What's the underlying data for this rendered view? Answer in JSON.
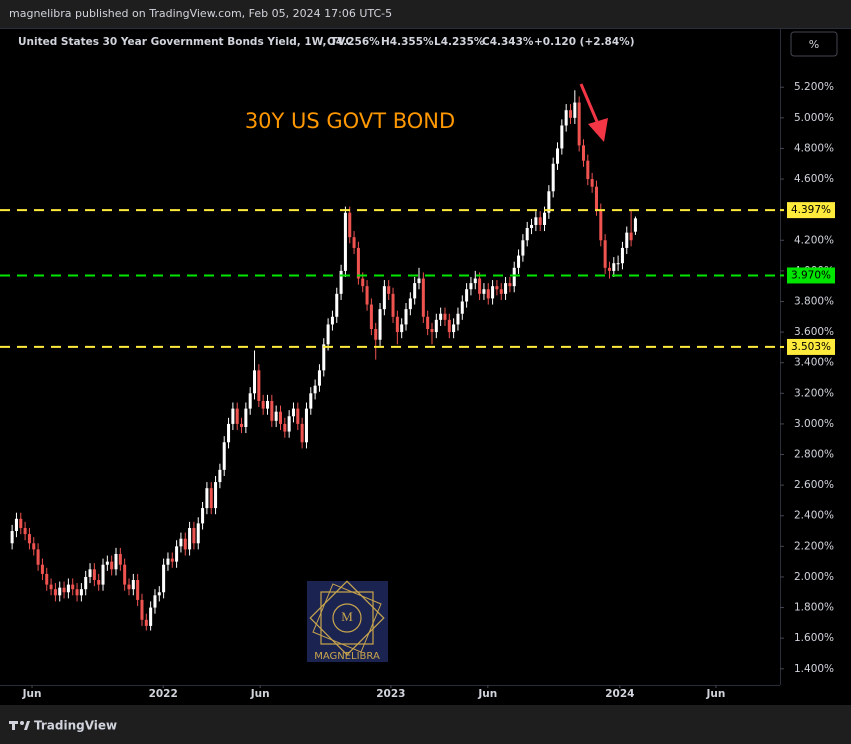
{
  "header": "magnelibra published on TradingView.com, Feb 05, 2024 17:06 UTC-5",
  "footer": "TradingView",
  "scale_button": "%",
  "watermark": "MAGNELIBRA",
  "chart_data": {
    "type": "candlestick",
    "legend": {
      "symbol": "United States 30 Year Government Bonds Yield, 1W, TVC",
      "open": "O4.256%",
      "high": "H4.355%",
      "low": "L4.235%",
      "close": "C4.343%",
      "change": "+0.120 (+2.84%)"
    },
    "annotation": "30Y US GOVT BOND",
    "up_color": "#ffffff",
    "down_color": "#ef5350",
    "open": [
      2.22,
      2.3,
      2.38,
      2.32,
      2.28,
      2.22,
      2.18,
      2.08,
      2.02,
      1.95,
      1.92,
      1.88,
      1.93,
      1.9,
      1.95,
      1.92,
      1.88,
      1.92,
      2.0,
      2.05,
      1.98,
      1.95,
      2.08,
      2.1,
      2.05,
      2.15,
      2.08,
      1.95,
      1.92,
      1.98,
      1.85,
      1.72,
      1.68,
      1.8,
      1.88,
      1.9,
      2.08,
      2.12,
      2.1,
      2.2,
      2.25,
      2.18,
      2.32,
      2.22,
      2.35,
      2.45,
      2.58,
      2.45,
      2.62,
      2.7,
      2.88,
      3.0,
      3.1,
      3.0,
      2.98,
      3.1,
      3.2,
      3.35,
      3.15,
      3.1,
      3.15,
      3.02,
      3.08,
      3.0,
      2.95,
      3.05,
      3.1,
      3.0,
      2.88,
      3.1,
      3.2,
      3.25,
      3.35,
      3.52,
      3.65,
      3.7,
      3.85,
      4.0,
      4.38,
      4.22,
      4.15,
      3.95,
      3.9,
      3.78,
      3.62,
      3.55,
      3.75,
      3.9,
      3.85,
      3.7,
      3.6,
      3.65,
      3.75,
      3.82,
      3.92,
      3.95,
      3.7,
      3.62,
      3.6,
      3.68,
      3.72,
      3.68,
      3.6,
      3.65,
      3.72,
      3.8,
      3.88,
      3.92,
      3.95,
      3.85,
      3.88,
      3.82,
      3.9,
      3.88,
      3.85,
      3.92,
      3.9,
      4.02,
      4.1,
      4.2,
      4.28,
      4.3,
      4.35,
      4.3,
      4.38,
      4.52,
      4.7,
      4.8,
      4.95,
      5.05,
      5.0,
      5.1,
      4.82,
      4.72,
      4.6,
      4.55,
      4.4,
      4.2,
      4.02,
      4.0,
      4.05,
      4.05,
      4.15,
      4.25,
      4.256
    ],
    "high": [
      2.34,
      2.42,
      2.42,
      2.36,
      2.32,
      2.26,
      2.22,
      2.12,
      2.06,
      1.99,
      1.96,
      1.97,
      1.97,
      1.99,
      1.99,
      1.96,
      1.96,
      2.04,
      2.09,
      2.09,
      2.02,
      2.12,
      2.14,
      2.14,
      2.19,
      2.19,
      2.12,
      1.99,
      2.02,
      2.02,
      1.89,
      1.76,
      1.84,
      1.92,
      1.94,
      2.12,
      2.16,
      2.16,
      2.24,
      2.29,
      2.29,
      2.36,
      2.36,
      2.39,
      2.49,
      2.62,
      2.62,
      2.66,
      2.74,
      2.92,
      3.04,
      3.14,
      3.14,
      3.04,
      3.14,
      3.24,
      3.48,
      3.39,
      3.19,
      3.19,
      3.19,
      3.12,
      3.12,
      3.04,
      3.09,
      3.14,
      3.14,
      3.04,
      3.14,
      3.24,
      3.29,
      3.39,
      3.56,
      3.69,
      3.74,
      3.89,
      4.04,
      4.42,
      4.42,
      4.26,
      4.19,
      3.99,
      3.94,
      3.82,
      3.66,
      3.79,
      3.94,
      3.94,
      3.89,
      3.74,
      3.69,
      3.79,
      3.86,
      3.96,
      4.02,
      3.99,
      3.74,
      3.66,
      3.72,
      3.76,
      3.76,
      3.72,
      3.69,
      3.76,
      3.84,
      3.92,
      3.96,
      4.0,
      3.99,
      3.92,
      3.92,
      3.94,
      3.94,
      3.92,
      3.96,
      3.96,
      4.06,
      4.14,
      4.24,
      4.32,
      4.34,
      4.39,
      4.39,
      4.42,
      4.56,
      4.74,
      4.84,
      4.99,
      5.09,
      5.09,
      5.18,
      5.14,
      4.86,
      4.76,
      4.64,
      4.59,
      4.44,
      4.24,
      4.06,
      4.09,
      4.1,
      4.19,
      4.29,
      4.4,
      4.355
    ],
    "low": [
      2.18,
      2.26,
      2.28,
      2.24,
      2.18,
      2.14,
      2.04,
      1.98,
      1.91,
      1.88,
      1.84,
      1.84,
      1.86,
      1.86,
      1.88,
      1.84,
      1.84,
      1.88,
      1.96,
      1.94,
      1.91,
      1.91,
      2.04,
      2.01,
      2.01,
      2.04,
      1.91,
      1.88,
      1.88,
      1.81,
      1.68,
      1.65,
      1.65,
      1.76,
      1.84,
      1.86,
      2.04,
      2.06,
      2.06,
      2.16,
      2.14,
      2.14,
      2.18,
      2.18,
      2.31,
      2.41,
      2.41,
      2.41,
      2.58,
      2.66,
      2.84,
      2.96,
      2.96,
      2.94,
      2.94,
      3.06,
      3.16,
      3.11,
      3.06,
      3.06,
      2.98,
      2.98,
      2.96,
      2.91,
      2.91,
      3.01,
      2.96,
      2.84,
      2.84,
      3.06,
      3.16,
      3.21,
      3.31,
      3.48,
      3.61,
      3.66,
      3.81,
      3.96,
      4.18,
      4.11,
      3.91,
      3.86,
      3.74,
      3.58,
      3.42,
      3.51,
      3.71,
      3.81,
      3.66,
      3.52,
      3.56,
      3.61,
      3.71,
      3.78,
      3.88,
      3.66,
      3.58,
      3.52,
      3.56,
      3.64,
      3.64,
      3.56,
      3.56,
      3.61,
      3.68,
      3.76,
      3.84,
      3.88,
      3.81,
      3.81,
      3.78,
      3.78,
      3.84,
      3.81,
      3.81,
      3.86,
      3.86,
      3.98,
      4.06,
      4.16,
      4.24,
      4.26,
      4.26,
      4.26,
      4.34,
      4.48,
      4.66,
      4.76,
      4.91,
      4.96,
      4.96,
      4.78,
      4.68,
      4.56,
      4.51,
      4.36,
      4.16,
      3.98,
      3.95,
      3.96,
      4.0,
      4.01,
      4.11,
      4.16,
      4.235
    ],
    "close": [
      2.3,
      2.38,
      2.32,
      2.28,
      2.22,
      2.18,
      2.08,
      2.02,
      1.95,
      1.92,
      1.88,
      1.93,
      1.9,
      1.95,
      1.92,
      1.88,
      1.92,
      2.0,
      2.05,
      1.98,
      1.95,
      2.08,
      2.1,
      2.05,
      2.15,
      2.08,
      1.95,
      1.92,
      1.98,
      1.85,
      1.72,
      1.68,
      1.8,
      1.88,
      1.9,
      2.08,
      2.12,
      2.1,
      2.2,
      2.25,
      2.18,
      2.32,
      2.22,
      2.35,
      2.45,
      2.58,
      2.45,
      2.62,
      2.7,
      2.88,
      3.0,
      3.1,
      3.0,
      2.98,
      3.1,
      3.2,
      3.35,
      3.15,
      3.1,
      3.15,
      3.02,
      3.08,
      3.0,
      2.95,
      3.05,
      3.1,
      3.0,
      2.88,
      3.1,
      3.2,
      3.25,
      3.35,
      3.52,
      3.65,
      3.7,
      3.85,
      4.0,
      4.38,
      4.22,
      4.15,
      3.95,
      3.9,
      3.78,
      3.62,
      3.55,
      3.75,
      3.9,
      3.85,
      3.7,
      3.6,
      3.65,
      3.75,
      3.82,
      3.92,
      3.95,
      3.7,
      3.62,
      3.6,
      3.68,
      3.72,
      3.68,
      3.6,
      3.65,
      3.72,
      3.8,
      3.88,
      3.92,
      3.95,
      3.85,
      3.88,
      3.82,
      3.9,
      3.88,
      3.85,
      3.92,
      3.9,
      4.02,
      4.1,
      4.2,
      4.28,
      4.3,
      4.35,
      4.3,
      4.38,
      4.52,
      4.7,
      4.8,
      4.95,
      5.05,
      5.0,
      5.1,
      4.82,
      4.72,
      4.6,
      4.55,
      4.4,
      4.2,
      4.02,
      4.0,
      4.05,
      4.05,
      4.15,
      4.25,
      4.2,
      4.343
    ],
    "xlim": [
      -2.8,
      177.4
    ],
    "xticks": [
      {
        "value": 4.6,
        "label": "Jun"
      },
      {
        "value": 34.9,
        "label": "2022"
      },
      {
        "value": 57.3,
        "label": "Jun"
      },
      {
        "value": 87.5,
        "label": "2023"
      },
      {
        "value": 109.9,
        "label": "Jun"
      },
      {
        "value": 140.4,
        "label": "2024"
      },
      {
        "value": 162.6,
        "label": "Jun"
      }
    ],
    "ylim": [
      1.294,
      5.587
    ],
    "yticks": [
      {
        "value": 1.4,
        "label": "1.400%"
      },
      {
        "value": 1.6,
        "label": "1.600%"
      },
      {
        "value": 1.8,
        "label": "1.800%"
      },
      {
        "value": 2.0,
        "label": "2.000%"
      },
      {
        "value": 2.2,
        "label": "2.200%"
      },
      {
        "value": 2.4,
        "label": "2.400%"
      },
      {
        "value": 2.6,
        "label": "2.600%"
      },
      {
        "value": 2.8,
        "label": "2.800%"
      },
      {
        "value": 3.0,
        "label": "3.000%"
      },
      {
        "value": 3.2,
        "label": "3.200%"
      },
      {
        "value": 3.4,
        "label": "3.400%"
      },
      {
        "value": 3.6,
        "label": "3.600%"
      },
      {
        "value": 3.8,
        "label": "3.800%"
      },
      {
        "value": 4.0,
        "label": "4.000%"
      },
      {
        "value": 4.2,
        "label": "4.200%"
      },
      {
        "value": 4.4,
        "label": "4.400%"
      },
      {
        "value": 4.6,
        "label": "4.600%"
      },
      {
        "value": 4.8,
        "label": "4.800%"
      },
      {
        "value": 5.0,
        "label": "5.000%"
      },
      {
        "value": 5.2,
        "label": "5.200%"
      }
    ],
    "levels": [
      {
        "value": 4.397,
        "label": "4.397%",
        "color": "#ffeb3b"
      },
      {
        "value": 3.97,
        "label": "3.970%",
        "color": "#00e600"
      },
      {
        "value": 3.503,
        "label": "3.503%",
        "color": "#ffeb3b"
      }
    ],
    "grid": false
  }
}
